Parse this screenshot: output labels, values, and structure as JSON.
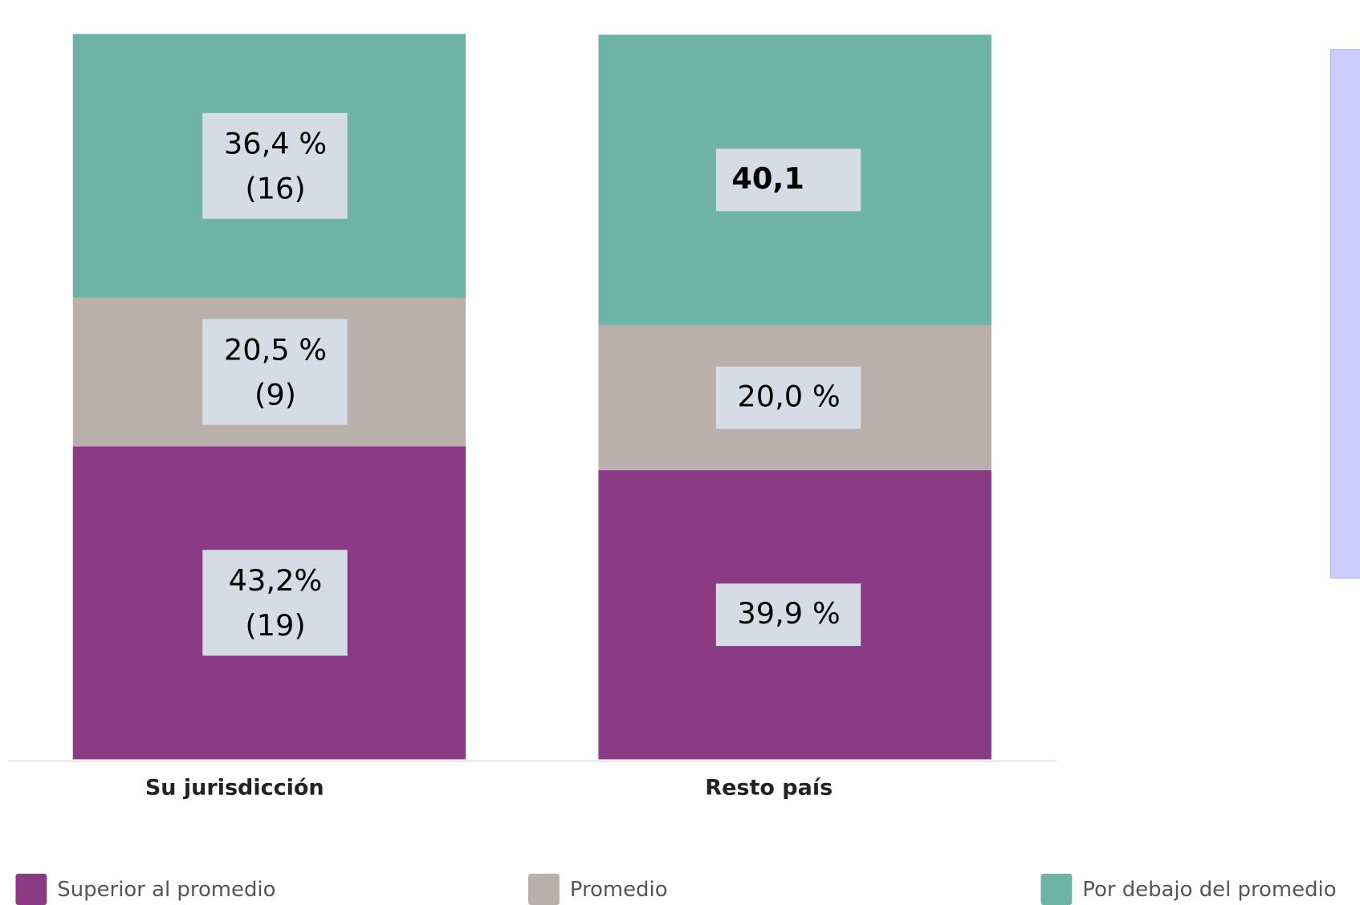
{
  "chart_data": {
    "type": "stacked_bar",
    "categories": [
      "Su jurisdicción",
      "Resto país"
    ],
    "series": [
      {
        "name": "Superior al promedio",
        "color": "#8b3a84",
        "values": [
          43.2,
          39.9
        ],
        "value_labels": [
          "43,2%",
          "39,9 %"
        ],
        "count_labels": [
          "(19)",
          null
        ]
      },
      {
        "name": "Promedio",
        "color": "#bab0ab",
        "values": [
          20.5,
          20.0
        ],
        "value_labels": [
          "20,5 %",
          "20,0 %"
        ],
        "count_labels": [
          "(9)",
          null
        ]
      },
      {
        "name": "Por debajo del promedio",
        "color": "#6fb2a6",
        "values": [
          36.4,
          40.1
        ],
        "value_labels": [
          "36,4 %",
          "40,1"
        ],
        "count_labels": [
          "(16)",
          null
        ]
      }
    ],
    "ylim": [
      0,
      100
    ],
    "legend": "bottom"
  }
}
